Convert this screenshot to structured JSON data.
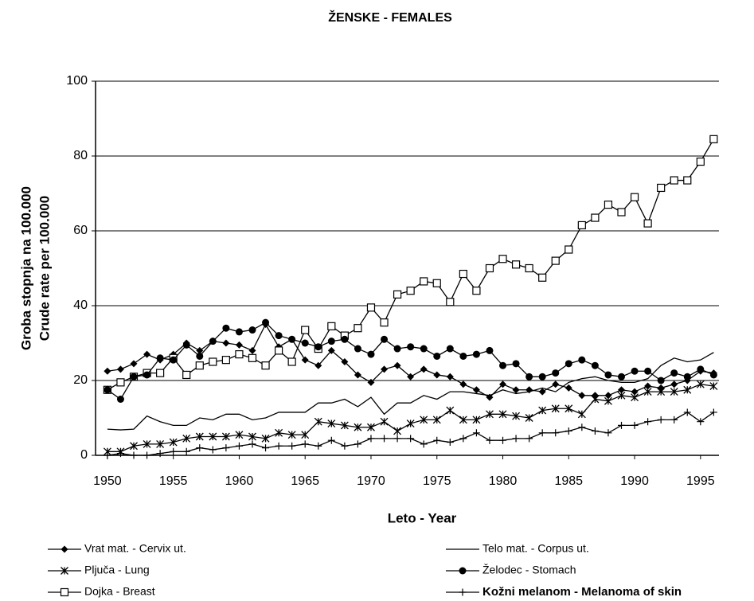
{
  "chart_data": {
    "type": "line",
    "title": "ŽENSKE - FEMALES",
    "xlabel": "Leto - Year",
    "ylabel": [
      "Groba stopnja na 100.000",
      "Crude rate per 100.000"
    ],
    "x": [
      1950,
      1951,
      1952,
      1953,
      1954,
      1955,
      1956,
      1957,
      1958,
      1959,
      1960,
      1961,
      1962,
      1963,
      1964,
      1965,
      1966,
      1967,
      1968,
      1969,
      1970,
      1971,
      1972,
      1973,
      1974,
      1975,
      1976,
      1977,
      1978,
      1979,
      1980,
      1981,
      1982,
      1983,
      1984,
      1985,
      1986,
      1987,
      1988,
      1989,
      1990,
      1991,
      1992,
      1993,
      1994,
      1995,
      1996
    ],
    "xlim": [
      1949.1,
      1996.4
    ],
    "xticks": [
      1950,
      1955,
      1960,
      1965,
      1970,
      1975,
      1980,
      1985,
      1990,
      1995
    ],
    "ylim": [
      0,
      100
    ],
    "yticks": [
      0,
      20,
      40,
      60,
      80,
      100
    ],
    "grid": true,
    "series": [
      {
        "name": "Vrat mat. - Cervix ut.",
        "color": "#000000",
        "marker": "diamond",
        "values": [
          22.5,
          23,
          24.5,
          27,
          25.5,
          27,
          30,
          28,
          30.5,
          30,
          29.5,
          28,
          35,
          29,
          31,
          25.5,
          24,
          28,
          25,
          21.5,
          19.5,
          23,
          24,
          21,
          23,
          21.5,
          21,
          19,
          17.5,
          15.5,
          19,
          17.5,
          17.5,
          17,
          19,
          18,
          16,
          16,
          16,
          17.5,
          17,
          18.5,
          18,
          19,
          20,
          22.5,
          22
        ]
      },
      {
        "name": "Pljuča - Lung",
        "color": "#000000",
        "marker": "asterisk",
        "values": [
          1,
          1,
          2.5,
          3,
          3,
          3.5,
          4.5,
          5,
          5,
          5,
          5.5,
          5,
          4.5,
          6,
          5.5,
          5.5,
          9,
          8.5,
          8,
          7.5,
          7.5,
          9,
          6.5,
          8.5,
          9.5,
          9.5,
          12,
          9.5,
          9.5,
          11,
          11,
          10.5,
          10,
          12,
          12.5,
          12.5,
          11,
          15,
          14.5,
          16,
          15.5,
          17,
          17,
          17,
          17.5,
          19,
          18.5
        ]
      },
      {
        "name": "Dojka - Breast",
        "color": "#000000",
        "marker": "square",
        "values": [
          17.5,
          19.5,
          21,
          22,
          22,
          26,
          21.5,
          24,
          25,
          25.5,
          27,
          26,
          24,
          28,
          25,
          33.5,
          28.5,
          34.5,
          32,
          34,
          39.5,
          35.5,
          43,
          44,
          46.5,
          46,
          41,
          48.5,
          44,
          50,
          52.5,
          51,
          50,
          47.5,
          52,
          55,
          61.5,
          63.5,
          67,
          65,
          69,
          62,
          71.5,
          73.5,
          73.5,
          78.5,
          84.5
        ]
      },
      {
        "name": "Telo mat. - Corpus ut.",
        "color": "#000000",
        "marker": "none",
        "values": [
          7,
          6.8,
          7,
          10.5,
          9,
          8,
          8,
          10,
          9.5,
          11,
          11,
          9.5,
          10,
          11.5,
          11.5,
          11.5,
          14,
          14,
          15,
          13,
          15.5,
          11,
          14,
          14,
          16,
          15,
          17,
          17,
          16.5,
          16,
          17.5,
          16.5,
          17,
          18,
          17,
          19.5,
          20.5,
          21,
          20,
          19.5,
          19.5,
          20.5,
          24,
          26,
          25,
          25.5,
          27.5
        ]
      },
      {
        "name": "Želodec - Stomach",
        "color": "#000000",
        "marker": "circle",
        "values": [
          17.5,
          15,
          21,
          21.5,
          26,
          25.5,
          29.5,
          26.5,
          30.5,
          34,
          33,
          33.5,
          35.5,
          32,
          31,
          30,
          29,
          30.5,
          31,
          28.5,
          27,
          31,
          28.5,
          29,
          28.5,
          26.5,
          28.5,
          26.5,
          27,
          28,
          24,
          24.5,
          21,
          21,
          22,
          24.5,
          25.5,
          24,
          21.5,
          21,
          22.5,
          22.5,
          20,
          22,
          21,
          23,
          21.5
        ]
      },
      {
        "name": "Kožni melanom - Melanoma of skin",
        "color": "#000000",
        "marker": "plus",
        "values": [
          0,
          0.5,
          0,
          0,
          0.5,
          1,
          1,
          2,
          1.5,
          2,
          2.5,
          3,
          2,
          2.5,
          2.5,
          3,
          2.5,
          4,
          2.5,
          3,
          4.5,
          4.5,
          4.5,
          4.5,
          3,
          4,
          3.5,
          4.5,
          6,
          4,
          4,
          4.5,
          4.5,
          6,
          6,
          6.5,
          7.5,
          6.5,
          6,
          8,
          8,
          9,
          9.5,
          9.5,
          11.5,
          9,
          11.5
        ]
      }
    ]
  }
}
